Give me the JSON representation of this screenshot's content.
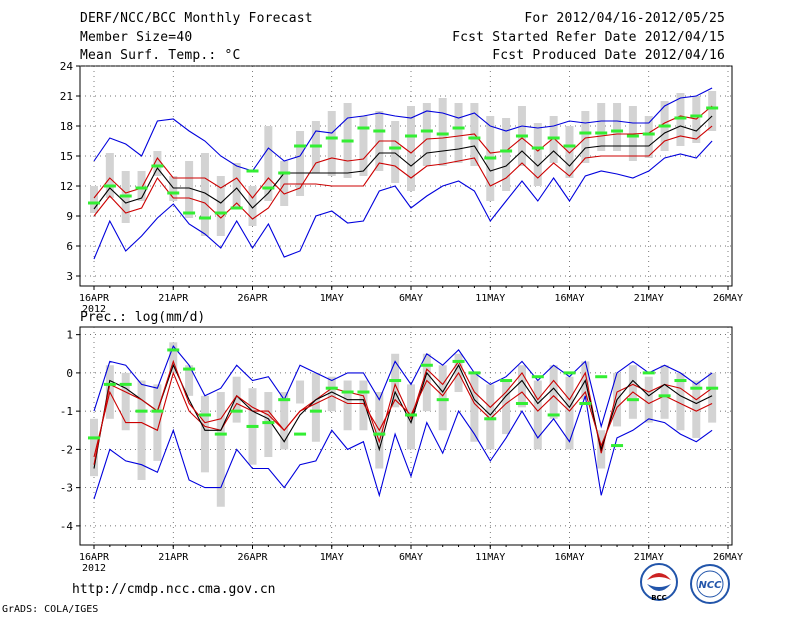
{
  "header": {
    "title": "DERF/NCC/BCC Monthly Forecast",
    "member_size": "Member Size=40",
    "variable": "Mean Surf. Temp.: °C",
    "forecast_period": "For 2012/04/16-2012/05/25",
    "started_refer": "Fcst Started Refer Date 2012/04/15",
    "produced": "Fcst Produced Date 2012/04/16"
  },
  "footer": {
    "url": "http://cmdp.ncc.cma.gov.cn",
    "grads": "GrADS: COLA/IGES",
    "logo_bcc": "BCC",
    "logo_ncc": "NCC"
  },
  "colors": {
    "mean": "#000000",
    "spread": "#cc0000",
    "envelope": "#0000dd",
    "median": "#33ee33",
    "box": "#d3d3d3"
  },
  "chart_data": [
    {
      "type": "line",
      "title": "Mean Surf. Temp.: °C",
      "x": [
        "16APR",
        "17APR",
        "18APR",
        "19APR",
        "20APR",
        "21APR",
        "22APR",
        "23APR",
        "24APR",
        "25APR",
        "26APR",
        "27APR",
        "28APR",
        "29APR",
        "30APR",
        "1MAY",
        "2MAY",
        "3MAY",
        "4MAY",
        "5MAY",
        "6MAY",
        "7MAY",
        "8MAY",
        "9MAY",
        "10MAY",
        "11MAY",
        "12MAY",
        "13MAY",
        "14MAY",
        "15MAY",
        "16MAY",
        "17MAY",
        "18MAY",
        "19MAY",
        "20MAY",
        "21MAY",
        "22MAY",
        "23MAY",
        "24MAY",
        "25MAY"
      ],
      "xticks": [
        "16APR",
        "21APR",
        "26APR",
        "1MAY",
        "6MAY",
        "11MAY",
        "16MAY",
        "21MAY",
        "26MAY"
      ],
      "xtick_year": "2012",
      "ylim": [
        2,
        24
      ],
      "yticks": [
        3,
        6,
        9,
        12,
        15,
        18,
        21,
        24
      ],
      "series": [
        {
          "name": "max",
          "values": [
            4.7,
            8.5,
            5.5,
            7.0,
            8.8,
            10.2,
            8.2,
            7.2,
            5.8,
            8.5,
            5.8,
            8.2,
            4.9,
            5.5,
            9.0,
            9.5,
            8.3,
            8.5,
            11.5,
            12.0,
            9.8,
            11.0,
            12.0,
            12.5,
            11.5,
            8.5,
            10.5,
            12.5,
            10.5,
            12.8,
            10.5,
            13.0,
            13.5,
            13.2,
            12.8,
            13.5,
            14.8,
            15.2,
            14.8,
            16.5
          ]
        },
        {
          "name": "upper",
          "values": [
            10.8,
            12.8,
            11.3,
            11.8,
            14.8,
            12.8,
            12.8,
            12.8,
            11.8,
            12.8,
            10.8,
            12.8,
            11.2,
            11.8,
            14.3,
            14.8,
            14.5,
            14.7,
            16.5,
            16.5,
            15.3,
            16.7,
            16.8,
            17.0,
            17.2,
            15.3,
            15.5,
            16.8,
            15.5,
            16.8,
            15.3,
            16.8,
            17.0,
            17.2,
            17.2,
            17.3,
            18.3,
            19.0,
            18.7,
            20.0
          ]
        },
        {
          "name": "mean",
          "values": [
            9.7,
            11.8,
            10.3,
            10.8,
            13.8,
            11.8,
            11.8,
            11.3,
            10.3,
            11.8,
            9.8,
            11.3,
            13.3,
            13.3,
            13.3,
            13.3,
            13.3,
            13.5,
            15.3,
            15.3,
            14.0,
            15.3,
            15.5,
            15.7,
            16.0,
            13.5,
            14.0,
            15.5,
            14.0,
            15.5,
            14.0,
            15.8,
            16.0,
            16.0,
            16.0,
            16.0,
            17.3,
            18.0,
            17.5,
            19.0
          ]
        },
        {
          "name": "lower",
          "values": [
            9.0,
            11.0,
            9.3,
            9.8,
            12.8,
            10.8,
            10.8,
            10.3,
            8.8,
            10.3,
            8.7,
            9.8,
            12.2,
            12.2,
            12.2,
            12.0,
            12.0,
            12.0,
            14.3,
            14.0,
            12.8,
            14.0,
            14.2,
            14.5,
            14.8,
            12.0,
            12.8,
            14.3,
            12.8,
            14.3,
            13.0,
            14.8,
            15.0,
            15.0,
            15.0,
            15.0,
            16.5,
            17.0,
            16.7,
            18.0
          ]
        },
        {
          "name": "min",
          "values": [
            14.5,
            16.8,
            16.2,
            15.0,
            18.5,
            18.7,
            17.5,
            16.5,
            15.0,
            14.0,
            13.5,
            15.8,
            14.5,
            15.0,
            17.5,
            17.3,
            18.8,
            19.0,
            19.3,
            19.0,
            18.8,
            19.5,
            19.3,
            18.8,
            19.3,
            18.0,
            17.5,
            18.0,
            17.8,
            18.0,
            18.5,
            18.3,
            18.5,
            18.5,
            18.3,
            18.3,
            20.0,
            20.8,
            21.0,
            21.8
          ]
        }
      ],
      "boxes": {
        "bottom": [
          9.3,
          10.8,
          8.3,
          10.5,
          13.0,
          10.5,
          8.8,
          7.0,
          7.0,
          9.8,
          8.0,
          10.5,
          10.0,
          11.0,
          13.3,
          13.0,
          12.8,
          13.0,
          13.5,
          12.3,
          11.5,
          14.0,
          14.0,
          14.3,
          14.0,
          10.5,
          11.5,
          14.0,
          12.0,
          14.3,
          12.8,
          14.3,
          15.5,
          15.5,
          14.5,
          14.8,
          15.5,
          16.0,
          16.3,
          17.5
        ],
        "top": [
          12.0,
          15.3,
          13.5,
          13.5,
          15.5,
          13.0,
          14.5,
          15.3,
          13.0,
          14.3,
          12.0,
          18.0,
          14.5,
          17.5,
          18.5,
          19.5,
          20.3,
          19.0,
          19.5,
          18.5,
          20.0,
          20.3,
          20.8,
          20.3,
          20.3,
          19.0,
          18.8,
          20.0,
          18.3,
          19.0,
          18.0,
          19.5,
          20.3,
          20.3,
          20.0,
          19.0,
          20.5,
          21.3,
          21.0,
          21.5
        ],
        "median": [
          10.3,
          12.0,
          11.0,
          11.8,
          14.0,
          11.3,
          9.3,
          8.8,
          9.3,
          9.8,
          13.5,
          11.8,
          13.3,
          16.0,
          16.0,
          16.8,
          16.5,
          17.8,
          17.5,
          15.8,
          17.0,
          17.5,
          17.2,
          17.8,
          16.8,
          14.8,
          15.5,
          17.0,
          15.8,
          16.8,
          16.0,
          17.3,
          17.3,
          17.5,
          17.0,
          17.2,
          18.0,
          18.8,
          19.0,
          19.8
        ]
      }
    },
    {
      "type": "line",
      "title": "Prec.: log(mm/d)",
      "x": [
        "16APR",
        "17APR",
        "18APR",
        "19APR",
        "20APR",
        "21APR",
        "22APR",
        "23APR",
        "24APR",
        "25APR",
        "26APR",
        "27APR",
        "28APR",
        "29APR",
        "30APR",
        "1MAY",
        "2MAY",
        "3MAY",
        "4MAY",
        "5MAY",
        "6MAY",
        "7MAY",
        "8MAY",
        "9MAY",
        "10MAY",
        "11MAY",
        "12MAY",
        "13MAY",
        "14MAY",
        "15MAY",
        "16MAY",
        "17MAY",
        "18MAY",
        "19MAY",
        "20MAY",
        "21MAY",
        "22MAY",
        "23MAY",
        "24MAY",
        "25MAY"
      ],
      "xticks": [
        "16APR",
        "21APR",
        "26APR",
        "1MAY",
        "6MAY",
        "11MAY",
        "16MAY",
        "21MAY",
        "26MAY"
      ],
      "xtick_year": "2012",
      "ylim": [
        -4.5,
        1.2
      ],
      "yticks": [
        -4,
        -3,
        -2,
        -1,
        0,
        1
      ],
      "series": [
        {
          "name": "max",
          "values": [
            -3.3,
            -2.0,
            -2.3,
            -2.4,
            -2.6,
            -1.5,
            -2.8,
            -3.0,
            -3.0,
            -2.0,
            -2.5,
            -2.5,
            -3.0,
            -2.4,
            -2.3,
            -1.5,
            -2.0,
            -1.8,
            -3.2,
            -1.6,
            -2.7,
            -1.3,
            -2.1,
            -1.0,
            -1.6,
            -2.3,
            -1.7,
            -1.0,
            -1.7,
            -1.2,
            -1.8,
            -0.6,
            -3.2,
            -1.7,
            -1.5,
            -1.2,
            -1.3,
            -1.6,
            -1.8,
            -1.5
          ]
        },
        {
          "name": "upper",
          "values": [
            -2.2,
            -0.5,
            -1.3,
            -1.3,
            -1.5,
            0.0,
            -1.0,
            -1.4,
            -1.5,
            -0.8,
            -1.0,
            -1.0,
            -1.5,
            -1.0,
            -0.7,
            -0.4,
            -0.5,
            -0.6,
            -1.8,
            -0.3,
            -1.2,
            0.1,
            -0.3,
            0.3,
            -0.5,
            -0.9,
            -0.5,
            0.0,
            -0.7,
            -0.2,
            -0.7,
            0.0,
            -2.1,
            -0.5,
            -0.3,
            -0.5,
            -0.3,
            -0.4,
            -0.7,
            -0.4
          ]
        },
        {
          "name": "mean",
          "values": [
            -2.5,
            -0.2,
            -0.4,
            -0.7,
            -1.0,
            0.2,
            -0.7,
            -1.5,
            -1.5,
            -0.6,
            -1.0,
            -1.2,
            -1.8,
            -1.1,
            -0.7,
            -0.5,
            -0.7,
            -0.7,
            -2.0,
            -0.5,
            -1.3,
            0.0,
            -0.5,
            0.2,
            -0.7,
            -1.1,
            -0.6,
            -0.2,
            -0.8,
            -0.4,
            -0.9,
            -0.2,
            -2.0,
            -0.7,
            -0.2,
            -0.6,
            -0.3,
            -0.6,
            -0.8,
            -0.6
          ]
        },
        {
          "name": "lower",
          "values": [
            -2.4,
            -0.3,
            -0.5,
            -0.7,
            -1.0,
            0.3,
            -0.8,
            -1.3,
            -1.2,
            -0.6,
            -0.9,
            -1.1,
            -1.5,
            -1.0,
            -0.8,
            -0.6,
            -0.8,
            -0.8,
            -1.5,
            -0.7,
            -1.1,
            -0.2,
            -0.6,
            0.0,
            -0.8,
            -1.2,
            -0.8,
            -0.5,
            -1.0,
            -0.6,
            -1.0,
            -0.5,
            -1.9,
            -0.9,
            -0.5,
            -0.8,
            -0.6,
            -0.8,
            -1.0,
            -0.8
          ]
        },
        {
          "name": "min",
          "values": [
            -1.0,
            0.3,
            0.2,
            -0.3,
            -0.4,
            0.7,
            0.2,
            -0.6,
            -0.4,
            0.2,
            -0.2,
            -0.1,
            -0.7,
            0.2,
            0.0,
            -0.2,
            0.0,
            0.0,
            -0.7,
            0.3,
            -0.3,
            0.5,
            0.2,
            0.6,
            0.0,
            -0.3,
            -0.1,
            0.3,
            -0.2,
            0.2,
            -0.1,
            0.3,
            -1.4,
            0.0,
            0.3,
            0.0,
            0.2,
            0.0,
            -0.3,
            0.0
          ]
        }
      ],
      "boxes": {
        "bottom": [
          -2.7,
          -1.2,
          -1.5,
          -2.8,
          -2.3,
          0.0,
          -0.6,
          -2.6,
          -3.5,
          -1.3,
          -2.4,
          -2.2,
          -2.0,
          -0.8,
          -1.8,
          -1.0,
          -1.5,
          -1.5,
          -2.5,
          -0.9,
          -2.0,
          -1.0,
          -1.5,
          -0.5,
          -1.8,
          -2.0,
          -1.6,
          -0.9,
          -2.0,
          -1.2,
          -2.0,
          -0.7,
          -2.5,
          -1.4,
          -1.2,
          -1.3,
          -1.2,
          -1.5,
          -1.7,
          -1.3
        ],
        "top": [
          -1.2,
          0.2,
          0.0,
          -0.2,
          -0.3,
          0.8,
          0.2,
          -0.6,
          -0.5,
          -0.1,
          -0.4,
          -0.5,
          -0.5,
          -0.2,
          0.0,
          -0.1,
          -0.2,
          -0.2,
          -0.5,
          0.5,
          -0.3,
          0.5,
          0.2,
          0.5,
          0.0,
          -0.3,
          -0.2,
          0.2,
          -0.2,
          0.2,
          -0.1,
          0.3,
          -1.5,
          0.0,
          0.2,
          -0.1,
          0.2,
          0.0,
          -0.2,
          0.0
        ],
        "median": [
          -1.7,
          -0.3,
          -0.3,
          -1.0,
          -1.0,
          0.6,
          0.1,
          -1.1,
          -1.6,
          -1.0,
          -1.4,
          -1.3,
          -0.7,
          -1.6,
          -1.0,
          -0.4,
          -0.5,
          -0.5,
          -1.6,
          -0.2,
          -1.1,
          0.2,
          -0.7,
          0.3,
          0.0,
          -1.2,
          -0.2,
          -0.8,
          -0.1,
          -1.1,
          0.0,
          -0.8,
          -0.1,
          -1.9,
          -0.7,
          0.0,
          -0.6,
          -0.2,
          -0.4,
          -0.4
        ]
      }
    }
  ]
}
